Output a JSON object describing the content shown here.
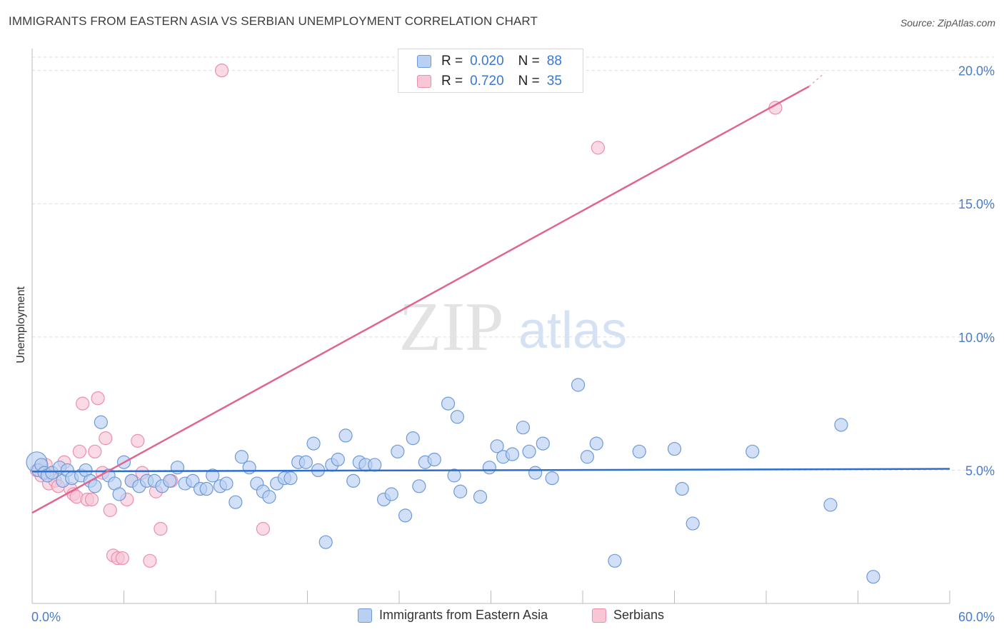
{
  "title": "IMMIGRANTS FROM EASTERN ASIA VS SERBIAN UNEMPLOYMENT CORRELATION CHART",
  "source": "Source: ZipAtlas.com",
  "watermark": {
    "zip": "ZIP",
    "atlas": "atlas"
  },
  "legend": {
    "series1": {
      "r_label": "R =",
      "r_value": "0.020",
      "n_label": "N =",
      "n_value": "88"
    },
    "series2": {
      "r_label": "R =",
      "r_value": "0.720",
      "n_label": "N =",
      "n_value": "35"
    }
  },
  "colors": {
    "blue_fill": "#b9d0f2",
    "blue_stroke": "#6f9ad8",
    "blue_line": "#2d6fcf",
    "pink_fill": "#f8c6d5",
    "pink_stroke": "#ec8fad",
    "pink_line": "#e06690",
    "grid": "#dcdcdc",
    "tick_text": "#4a7cc7"
  },
  "chart_data": {
    "type": "scatter",
    "title": "IMMIGRANTS FROM EASTERN ASIA VS SERBIAN UNEMPLOYMENT CORRELATION CHART",
    "xlabel": "",
    "ylabel": "Unemployment",
    "xlim": [
      0,
      60
    ],
    "ylim": [
      0,
      20.5
    ],
    "x_tick_labels": [
      "0.0%",
      "60.0%"
    ],
    "y_ticks": [
      5,
      10,
      15,
      20
    ],
    "y_tick_labels": [
      "5.0%",
      "10.0%",
      "15.0%",
      "20.0%"
    ],
    "grid": true,
    "legend_position": "top-center",
    "series": [
      {
        "name": "Immigrants from Eastern Asia",
        "color": "blue",
        "r": 0.02,
        "n": 88,
        "trend": {
          "x0": 0,
          "y0": 4.95,
          "x1": 60,
          "y1": 5.05
        },
        "points": [
          [
            0.3,
            5.3,
            1.6
          ],
          [
            0.4,
            5.0,
            1.0
          ],
          [
            0.6,
            5.2,
            1.0
          ],
          [
            0.8,
            4.9,
            1.0
          ],
          [
            1.0,
            4.8,
            1.0
          ],
          [
            1.3,
            4.9,
            1.0
          ],
          [
            1.8,
            5.1,
            1.0
          ],
          [
            2.0,
            4.6,
            1.0
          ],
          [
            2.3,
            5.0,
            1.0
          ],
          [
            2.6,
            4.7,
            1.0
          ],
          [
            3.2,
            4.8,
            1.0
          ],
          [
            3.5,
            5.0,
            1.0
          ],
          [
            3.8,
            4.6,
            1.0
          ],
          [
            4.1,
            4.4,
            1.0
          ],
          [
            4.5,
            6.8,
            1.0
          ],
          [
            5.0,
            4.8,
            1.0
          ],
          [
            5.4,
            4.5,
            1.0
          ],
          [
            5.7,
            4.1,
            1.0
          ],
          [
            6.0,
            5.3,
            1.0
          ],
          [
            6.5,
            4.6,
            1.0
          ],
          [
            7.0,
            4.4,
            1.0
          ],
          [
            7.5,
            4.6,
            1.0
          ],
          [
            8.0,
            4.6,
            1.0
          ],
          [
            8.5,
            4.4,
            1.0
          ],
          [
            9.0,
            4.6,
            1.0
          ],
          [
            9.5,
            5.1,
            1.0
          ],
          [
            10.0,
            4.5,
            1.0
          ],
          [
            10.5,
            4.6,
            1.0
          ],
          [
            11.0,
            4.3,
            1.0
          ],
          [
            11.4,
            4.3,
            1.0
          ],
          [
            11.8,
            4.8,
            1.0
          ],
          [
            12.3,
            4.4,
            1.0
          ],
          [
            12.7,
            4.5,
            1.0
          ],
          [
            13.3,
            3.8,
            1.0
          ],
          [
            13.7,
            5.5,
            1.0
          ],
          [
            14.2,
            5.1,
            1.0
          ],
          [
            14.7,
            4.5,
            1.0
          ],
          [
            15.1,
            4.2,
            1.0
          ],
          [
            15.5,
            4.0,
            1.0
          ],
          [
            16.0,
            4.5,
            1.0
          ],
          [
            16.5,
            4.7,
            1.0
          ],
          [
            16.9,
            4.7,
            1.0
          ],
          [
            17.4,
            5.3,
            1.0
          ],
          [
            17.9,
            5.3,
            1.0
          ],
          [
            18.4,
            6.0,
            1.0
          ],
          [
            18.7,
            5.0,
            1.0
          ],
          [
            19.2,
            2.3,
            1.0
          ],
          [
            19.6,
            5.2,
            1.0
          ],
          [
            20.0,
            5.4,
            1.0
          ],
          [
            20.5,
            6.3,
            1.0
          ],
          [
            21.0,
            4.6,
            1.0
          ],
          [
            21.4,
            5.3,
            1.0
          ],
          [
            21.8,
            5.2,
            1.0
          ],
          [
            22.4,
            5.2,
            1.0
          ],
          [
            23.0,
            3.9,
            1.0
          ],
          [
            23.5,
            4.1,
            1.0
          ],
          [
            23.9,
            5.7,
            1.0
          ],
          [
            24.4,
            3.3,
            1.0
          ],
          [
            24.9,
            6.2,
            1.0
          ],
          [
            25.3,
            4.4,
            1.0
          ],
          [
            25.7,
            5.3,
            1.0
          ],
          [
            26.3,
            5.4,
            1.0
          ],
          [
            27.2,
            7.5,
            1.0
          ],
          [
            27.6,
            4.8,
            1.0
          ],
          [
            27.8,
            7.0,
            1.0
          ],
          [
            28.0,
            4.2,
            1.0
          ],
          [
            29.3,
            4.0,
            1.0
          ],
          [
            29.9,
            5.1,
            1.0
          ],
          [
            30.4,
            5.9,
            1.0
          ],
          [
            30.8,
            5.5,
            1.0
          ],
          [
            31.4,
            5.6,
            1.0
          ],
          [
            32.1,
            6.6,
            1.0
          ],
          [
            32.5,
            5.7,
            1.0
          ],
          [
            32.9,
            4.9,
            1.0
          ],
          [
            33.4,
            6.0,
            1.0
          ],
          [
            34.0,
            4.7,
            1.0
          ],
          [
            35.7,
            8.2,
            1.0
          ],
          [
            36.3,
            5.5,
            1.0
          ],
          [
            36.9,
            6.0,
            1.0
          ],
          [
            38.1,
            1.6,
            1.0
          ],
          [
            39.7,
            5.7,
            1.0
          ],
          [
            42.0,
            5.8,
            1.0
          ],
          [
            42.5,
            4.3,
            1.0
          ],
          [
            43.2,
            3.0,
            1.0
          ],
          [
            47.1,
            5.7,
            1.0
          ],
          [
            52.2,
            3.7,
            1.0
          ],
          [
            52.9,
            6.7,
            1.0
          ],
          [
            55.0,
            1.0,
            1.0
          ]
        ]
      },
      {
        "name": "Serbians",
        "color": "pink",
        "r": 0.72,
        "n": 35,
        "trend": {
          "x0": 0,
          "y0": 3.4,
          "x1": 50.8,
          "y1": 19.4
        },
        "trend_dashed_end": {
          "x": 51.8,
          "y": 19.9
        },
        "points": [
          [
            0.3,
            5.0,
            1.0
          ],
          [
            0.6,
            4.8,
            1.0
          ],
          [
            0.9,
            5.2,
            1.0
          ],
          [
            1.1,
            4.5,
            1.0
          ],
          [
            1.3,
            4.9,
            1.0
          ],
          [
            1.5,
            4.6,
            1.0
          ],
          [
            1.7,
            4.4,
            1.0
          ],
          [
            2.1,
            5.3,
            1.0
          ],
          [
            2.5,
            4.3,
            1.0
          ],
          [
            2.7,
            4.1,
            1.0
          ],
          [
            2.9,
            4.0,
            1.0
          ],
          [
            3.1,
            5.7,
            1.0
          ],
          [
            3.3,
            7.5,
            1.0
          ],
          [
            3.6,
            3.9,
            1.0
          ],
          [
            3.9,
            3.9,
            1.0
          ],
          [
            4.1,
            5.7,
            1.0
          ],
          [
            4.3,
            7.7,
            1.0
          ],
          [
            4.6,
            4.9,
            1.0
          ],
          [
            4.8,
            6.2,
            1.0
          ],
          [
            5.1,
            3.5,
            1.0
          ],
          [
            5.3,
            1.8,
            1.0
          ],
          [
            5.6,
            1.7,
            1.0
          ],
          [
            5.9,
            1.7,
            1.0
          ],
          [
            6.2,
            3.9,
            1.0
          ],
          [
            6.5,
            4.6,
            1.0
          ],
          [
            6.9,
            6.1,
            1.0
          ],
          [
            7.2,
            4.9,
            1.0
          ],
          [
            7.7,
            1.6,
            1.0
          ],
          [
            8.1,
            4.2,
            1.0
          ],
          [
            8.4,
            2.8,
            1.0
          ],
          [
            9.1,
            4.6,
            1.0
          ],
          [
            12.4,
            20.0,
            1.0
          ],
          [
            15.1,
            2.8,
            1.0
          ],
          [
            37.0,
            17.1,
            1.0
          ],
          [
            48.6,
            18.6,
            1.0
          ]
        ]
      }
    ]
  },
  "axes": {
    "y_axis_title": "Unemployment",
    "x_min_label": "0.0%",
    "x_max_label": "60.0%"
  }
}
